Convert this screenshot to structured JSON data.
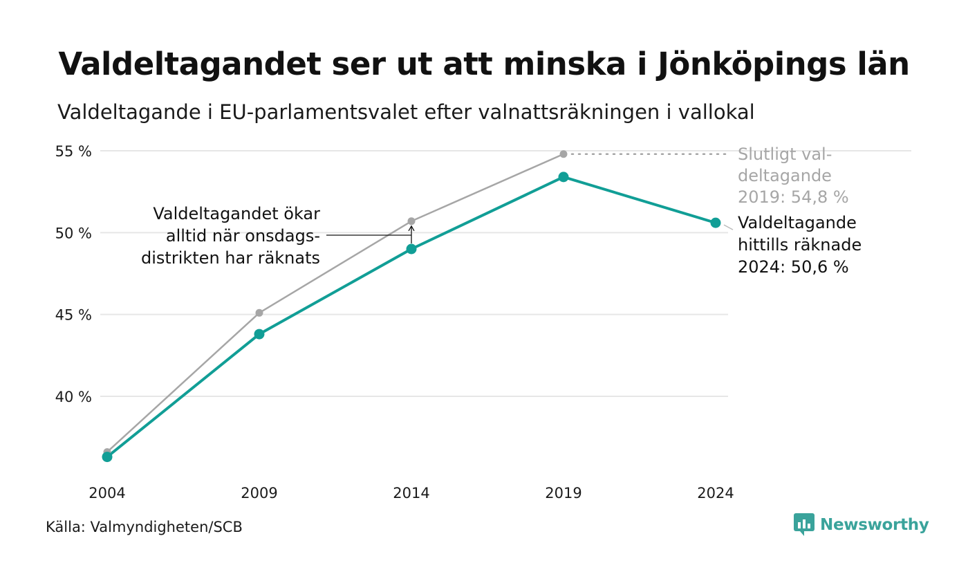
{
  "title": "Valdeltagandet ser ut att minska i Jönköpings län",
  "subtitle": "Valdeltagande i EU-parlamentsvalet efter valnattsräkningen i vallokal",
  "source": "Källa: Valmyndigheten/SCB",
  "brand": "Newsworthy",
  "colors": {
    "final": "#a6a6a6",
    "counted": "#119e96",
    "grid": "#e6e6e6",
    "brand": "#3aa39b"
  },
  "chart_data": {
    "type": "line",
    "x": [
      2004,
      2009,
      2014,
      2019,
      2024
    ],
    "x_tick_labels": [
      "2004",
      "2009",
      "2014",
      "2019",
      "2024"
    ],
    "y_ticks": [
      40,
      45,
      50,
      55
    ],
    "y_tick_labels": [
      "40 %",
      "45 %",
      "50 %",
      "55 %"
    ],
    "ylim": [
      35.5,
      55.6
    ],
    "grid": true,
    "series": [
      {
        "key": "final",
        "values": [
          36.6,
          45.1,
          50.7,
          54.8,
          null
        ]
      },
      {
        "key": "counted",
        "values": [
          36.3,
          43.8,
          49.0,
          53.4,
          50.6
        ]
      }
    ],
    "annotations": {
      "final_label": [
        "Slutligt val-",
        "deltagande",
        "2019: 54,8 %"
      ],
      "counted_label": [
        "Valdeltagande",
        "hittills räknade",
        "2024: 50,6 %"
      ],
      "note": [
        "Valdeltagandet ökar",
        "alltid när onsdags-",
        "distrikten har räknats"
      ]
    }
  }
}
